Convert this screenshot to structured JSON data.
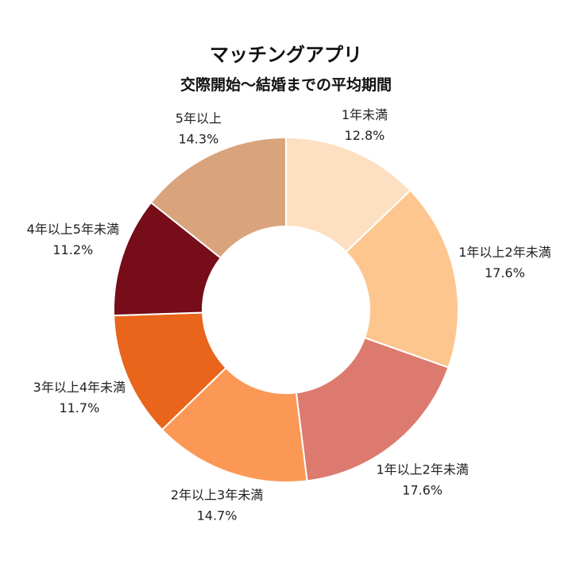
{
  "chart_data": {
    "type": "pie",
    "donut": true,
    "title": "マッチングアプリ",
    "subtitle": "交際開始〜結婚までの平均期間",
    "start": "top",
    "direction": "clockwise",
    "categories": [
      "1年未満",
      "1年以上2年未満",
      "1年以上2年未満",
      "2年以上3年未満",
      "3年以上4年未満",
      "4年以上5年未満",
      "5年以上"
    ],
    "values": [
      12.8,
      17.6,
      17.6,
      14.7,
      11.7,
      11.2,
      14.3
    ],
    "unit": "%",
    "colors": [
      "#FDE0C1",
      "#FDC68F",
      "#DD7A6F",
      "#FC9856",
      "#E8651B",
      "#760D18",
      "#D9A47C"
    ],
    "legend": "none"
  }
}
